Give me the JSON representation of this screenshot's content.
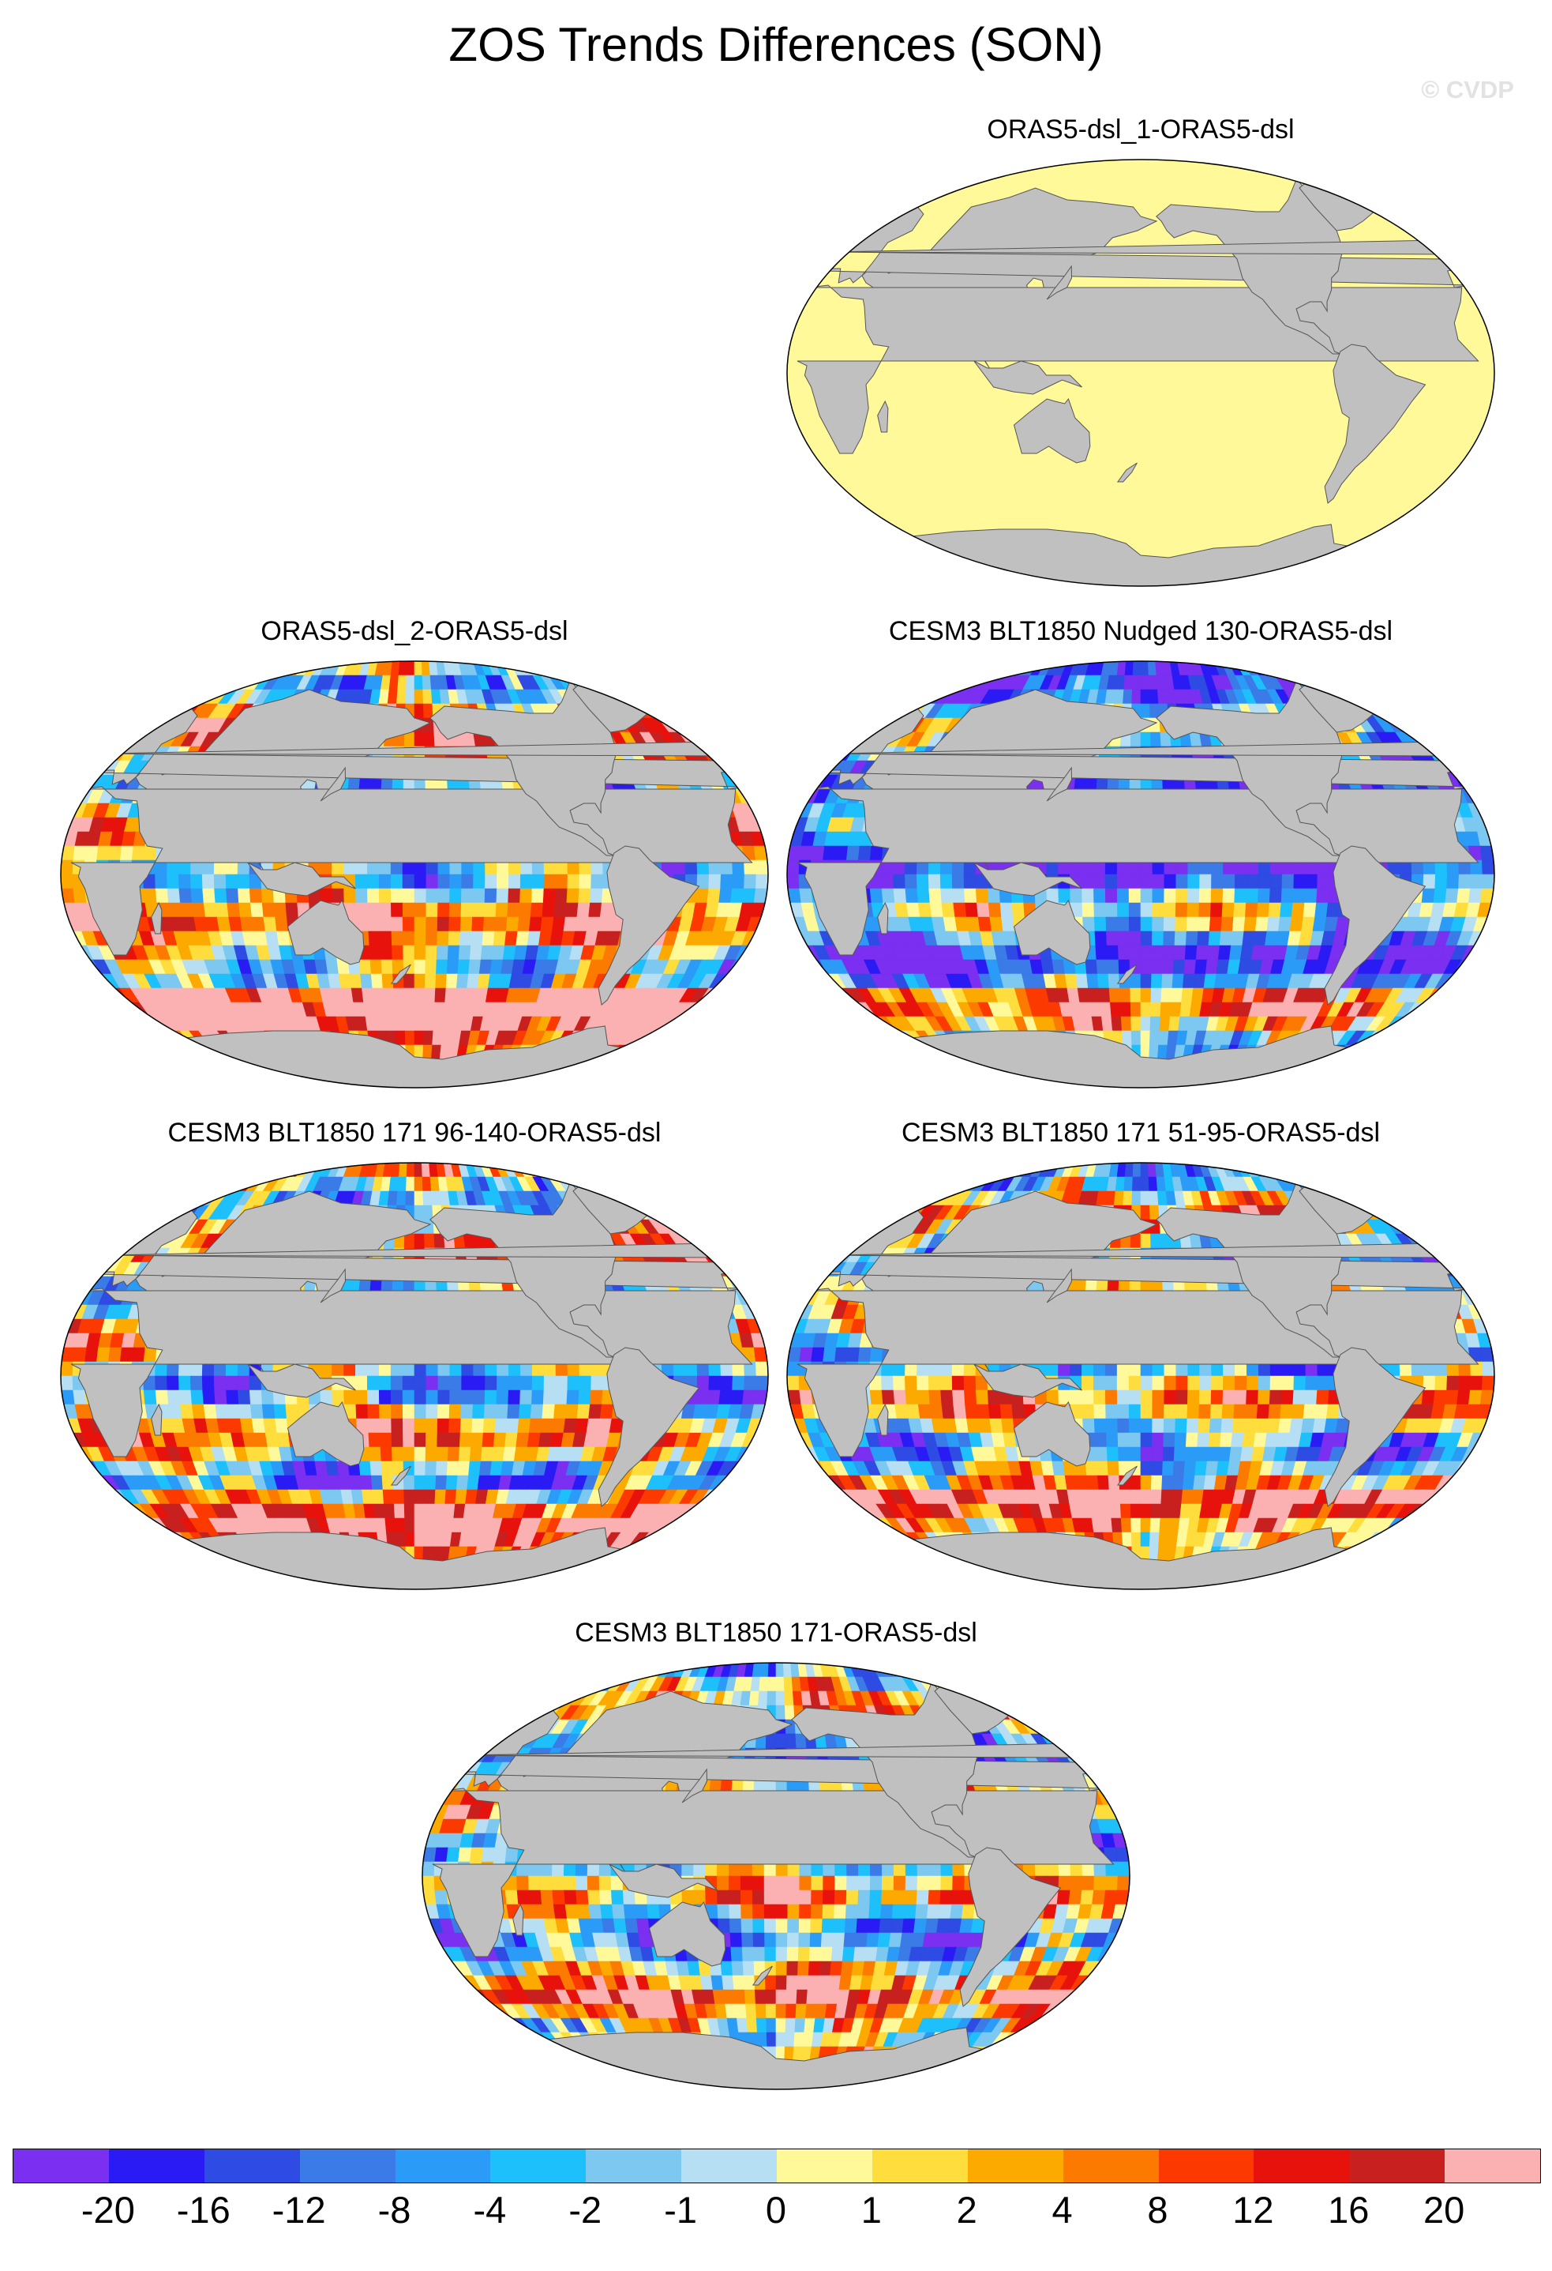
{
  "title": "ZOS Trends Differences (SON)",
  "watermark": "© CVDP",
  "map_style": {
    "ocean_default": "#fff99a",
    "land": "#c0c0c0",
    "coast": "#555555"
  },
  "panels": [
    {
      "title": "ORAS5-dsl_1-ORAS5-dsl",
      "fill": "uniform",
      "color_index": 8,
      "seed": 0
    },
    {
      "title": "ORAS5-dsl_2-ORAS5-dsl",
      "fill": "pattern",
      "bias": 1.2,
      "seed": 11
    },
    {
      "title": "CESM3 BLT1850 Nudged 130-ORAS5-dsl",
      "fill": "pattern",
      "bias": -2.2,
      "seed": 23
    },
    {
      "title": "CESM3 BLT1850 171 96-140-ORAS5-dsl",
      "fill": "pattern",
      "bias": 0.3,
      "seed": 37
    },
    {
      "title": "CESM3 BLT1850 171 51-95-ORAS5-dsl",
      "fill": "pattern",
      "bias": 0.1,
      "seed": 41
    },
    {
      "title": "CESM3 BLT1850 171-ORAS5-dsl",
      "fill": "pattern",
      "bias": -0.3,
      "seed": 53
    }
  ],
  "colorbar": {
    "colors": [
      "#7b2ff0",
      "#2a1bf5",
      "#2e4be3",
      "#3a7be8",
      "#2a9cf7",
      "#1ec0fb",
      "#7cc8f0",
      "#b7dff3",
      "#fff99a",
      "#fedd3c",
      "#fdaa00",
      "#fd7a00",
      "#fc3a00",
      "#e8120c",
      "#c8201e",
      "#fbb1b1"
    ],
    "labels": [
      "-20",
      "-16",
      "-12",
      "-8",
      "-4",
      "-2",
      "-1",
      "0",
      "1",
      "2",
      "4",
      "8",
      "12",
      "16",
      "20"
    ]
  }
}
